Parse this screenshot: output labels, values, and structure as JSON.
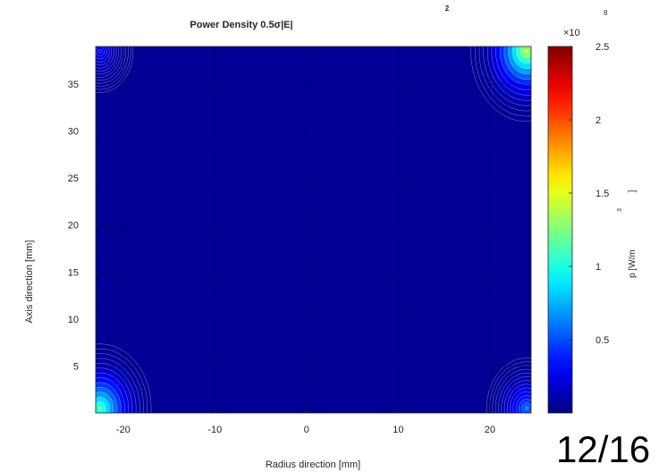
{
  "chart_data": {
    "type": "heatmap",
    "title": "Power Density 0.5σ|E|",
    "title_superscript": "2",
    "xlabel": "Radius direction [mm]",
    "ylabel": "Axis direction [mm]",
    "xlim": [
      -23,
      24.5
    ],
    "ylim": [
      0,
      39
    ],
    "x_ticks": [
      -20,
      -10,
      0,
      10,
      20
    ],
    "y_ticks": [
      5,
      10,
      15,
      20,
      25,
      30,
      35
    ],
    "colorbar": {
      "label": "p [W/m",
      "label_superscript": "3",
      "label_suffix": "]",
      "exponent_label": "×10",
      "exponent": "8",
      "range": [
        0,
        2.5
      ],
      "ticks": [
        0.5,
        1,
        1.5,
        2,
        2.5
      ],
      "tick_labels": [
        "0.5",
        "1",
        "1.5",
        "2",
        "2.5"
      ],
      "colormap": "jet"
    },
    "hotspots": [
      {
        "location": "top-right corner",
        "x": 24,
        "y": 38.5,
        "value": 1.5
      },
      {
        "location": "bottom-left corner",
        "x": -22.5,
        "y": 0.5,
        "value": 1.2
      },
      {
        "location": "bottom-right corner",
        "x": 24,
        "y": 0.5,
        "value": 0.6
      },
      {
        "location": "top-left corner",
        "x": -22.5,
        "y": 38.5,
        "value": 0.3
      }
    ],
    "background_value": 0.05
  },
  "slide": {
    "page_number": "12/16"
  }
}
